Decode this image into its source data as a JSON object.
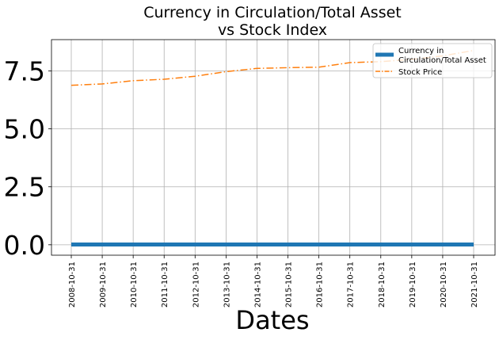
{
  "chart_data": {
    "type": "line",
    "title_lines": [
      "Currency in Circulation/Total Asset",
      "vs Stock Index"
    ],
    "xlabel": "Dates",
    "ylabel": "",
    "x": [
      "2008-10-31",
      "2009-10-31",
      "2010-10-31",
      "2011-10-31",
      "2012-10-31",
      "2013-10-31",
      "2014-10-31",
      "2015-10-31",
      "2016-10-31",
      "2017-10-31",
      "2018-10-31",
      "2019-10-31",
      "2020-10-31",
      "2021-10-31"
    ],
    "xtick_labels": [
      "2008-10-31",
      "2009-10-31",
      "2010-10-31",
      "2011-10-31",
      "2012-10-31",
      "2013-10-31",
      "2014-10-31",
      "2015-10-31",
      "2016-10-31",
      "2017-10-31",
      "2018-10-31",
      "2019-10-31",
      "2020-10-31",
      "2021-10-31"
    ],
    "yticks": [
      0.0,
      2.5,
      5.0,
      7.5
    ],
    "ytick_labels": [
      "0.0",
      "2.5",
      "5.0",
      "7.5"
    ],
    "ylim": [
      -0.45,
      8.85
    ],
    "grid": true,
    "legend_placement": "upper-right",
    "series": [
      {
        "name": "Currency in Circulation/Total Asset",
        "legend_lines": [
          "Currency in",
          "Circulation/Total Asset"
        ],
        "color": "#1f77b4",
        "style": "solid",
        "values": [
          0.01,
          0.01,
          0.01,
          0.01,
          0.01,
          0.01,
          0.01,
          0.01,
          0.01,
          0.01,
          0.01,
          0.01,
          0.01,
          0.01
        ]
      },
      {
        "name": "Stock Price",
        "legend_lines": [
          "Stock Price"
        ],
        "color": "#ff7f0e",
        "style": "dashdot",
        "values": [
          6.88,
          6.94,
          7.08,
          7.14,
          7.27,
          7.47,
          7.61,
          7.64,
          7.66,
          7.86,
          7.9,
          8.0,
          8.15,
          8.38
        ]
      }
    ]
  }
}
